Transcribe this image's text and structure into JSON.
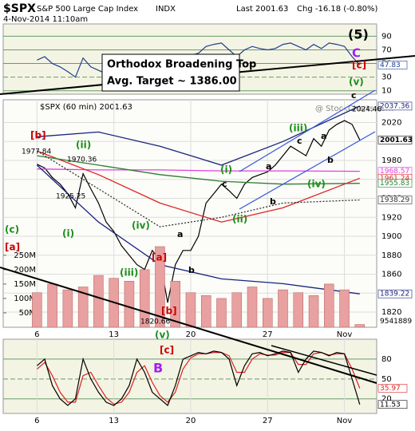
{
  "header": {
    "symbol": "$SPX",
    "name": "S&P 500 Large Cap Index",
    "exchange": "INDX",
    "timestamp": "4-Nov-2014 11:10am",
    "last": "Last 2001.63",
    "change": "Chg -16.18 (-0.80%)"
  },
  "watermark": "@ StockCharts.com",
  "note": {
    "line1": "Orthodox Broadening Top",
    "line2": "Avg. Target ~ 1386.00"
  },
  "annotations": [
    {
      "text": "(5)",
      "color": "#000000"
    },
    {
      "text": "C",
      "color": "#a020f0"
    },
    {
      "text": "[c]",
      "color": "#cc0000"
    },
    {
      "text": "(v)",
      "color": "#1a8f1a"
    },
    {
      "text": "c",
      "color": "#000000"
    },
    {
      "text": "2024.46",
      "color": "#000000"
    },
    {
      "text": "[b]",
      "color": "#cc0000"
    },
    {
      "text": "1977.84",
      "color": "#000000"
    },
    {
      "text": "(ii)",
      "color": "#1a8f1a"
    },
    {
      "text": "1970.36",
      "color": "#000000"
    },
    {
      "text": "1925.25",
      "color": "#000000"
    },
    {
      "text": "(i)",
      "color": "#1a8f1a"
    },
    {
      "text": "(c)",
      "color": "#1a8f1a"
    },
    {
      "text": "[a]",
      "color": "#cc0000"
    },
    {
      "text": "(iv)",
      "color": "#1a8f1a"
    },
    {
      "text": "(iii)",
      "color": "#1a8f1a"
    },
    {
      "text": "[a]",
      "color": "#cc0000"
    },
    {
      "text": "a",
      "color": "#000000"
    },
    {
      "text": "b",
      "color": "#000000"
    },
    {
      "text": "[b]",
      "color": "#cc0000"
    },
    {
      "text": "1820.66",
      "color": "#000000"
    },
    {
      "text": "(v)",
      "color": "#1a8f1a"
    },
    {
      "text": "[c]",
      "color": "#cc0000"
    },
    {
      "text": "B",
      "color": "#a020f0"
    },
    {
      "text": "(i)",
      "color": "#1a8f1a"
    },
    {
      "text": "c",
      "color": "#000000"
    },
    {
      "text": "(ii)",
      "color": "#1a8f1a"
    },
    {
      "text": "a",
      "color": "#000000"
    },
    {
      "text": "b",
      "color": "#000000"
    },
    {
      "text": "(iii)",
      "color": "#1a8f1a"
    },
    {
      "text": "c",
      "color": "#000000"
    },
    {
      "text": "a",
      "color": "#000000"
    },
    {
      "text": "b",
      "color": "#000000"
    },
    {
      "text": "(iv)",
      "color": "#1a8f1a"
    }
  ],
  "chart_data": [
    {
      "type": "line",
      "xlim": [
        -2.2,
        22.1
      ],
      "ylim": [
        5,
        108
      ],
      "yticks": [
        10,
        30,
        50,
        70,
        90
      ],
      "x": [
        0,
        0.5,
        1,
        1.5,
        2,
        2.5,
        3,
        3.5,
        4,
        4.5,
        5,
        5.5,
        6,
        6.5,
        7,
        7.5,
        8,
        8.5,
        9,
        9.5,
        10,
        10.5,
        11,
        11.5,
        12,
        12.5,
        13,
        13.5,
        14,
        14.5,
        15,
        15.5,
        16,
        16.5,
        17,
        17.5,
        18,
        18.5,
        19,
        19.5,
        20,
        20.5,
        21
      ],
      "series": [
        {
          "color": "#1f3f8f",
          "values": [
            55,
            60,
            50,
            45,
            38,
            30,
            58,
            45,
            40,
            35,
            32,
            30,
            28,
            35,
            40,
            55,
            45,
            25,
            50,
            60,
            62,
            65,
            75,
            78,
            80,
            70,
            60,
            70,
            75,
            72,
            70,
            72,
            78,
            80,
            75,
            70,
            78,
            72,
            80,
            78,
            75,
            60,
            47.83
          ]
        }
      ]
    },
    {
      "type": "line",
      "title": "$SPX (60 min) 2001.63",
      "xlim": [
        -2.2,
        22.1
      ],
      "ylim": [
        1804,
        2044
      ],
      "xticks": [
        {
          "value": 0,
          "label": "6"
        },
        {
          "value": 5,
          "label": "13"
        },
        {
          "value": 10,
          "label": "20"
        },
        {
          "value": 15,
          "label": "27"
        },
        {
          "value": 20,
          "label": "Nov"
        }
      ],
      "yticks": [
        1820,
        1840,
        1860,
        1880,
        1900,
        1920,
        1940,
        1960,
        1980,
        2000,
        2020
      ],
      "grid": true,
      "x": [
        0,
        0.5,
        1,
        1.5,
        2,
        2.5,
        3,
        3.5,
        4,
        4.5,
        5,
        5.5,
        6,
        6.5,
        7,
        7.5,
        8,
        8.5,
        9,
        9.5,
        10,
        10.5,
        11,
        11.5,
        12,
        12.5,
        13,
        13.5,
        14,
        14.5,
        15,
        15.5,
        16,
        16.5,
        17,
        17.5,
        18,
        18.5,
        19,
        19.5,
        20,
        20.5,
        21
      ],
      "series": [
        {
          "color": "#000000",
          "values": [
            1976,
            1972,
            1962,
            1955,
            1945,
            1930,
            1966,
            1950,
            1935,
            1915,
            1905,
            1890,
            1880,
            1870,
            1865,
            1885,
            1875,
            1830,
            1870,
            1885,
            1885,
            1900,
            1935,
            1945,
            1955,
            1948,
            1940,
            1955,
            1962,
            1965,
            1968,
            1975,
            1985,
            1995,
            1990,
            1985,
            2003,
            1995,
            2012,
            2018,
            2022,
            2018,
            2001.63
          ]
        },
        {
          "color": "#1a237e",
          "x": [
            0,
            4,
            8,
            12,
            16,
            21
          ],
          "values": [
            2005,
            2010,
            1995,
            1975,
            2000,
            2037.36
          ]
        },
        {
          "color": "#e040e0",
          "x": [
            0,
            4,
            8,
            12,
            16,
            21
          ],
          "values": [
            1971,
            1970,
            1970,
            1969,
            1969,
            1968.57
          ]
        },
        {
          "color": "#dd2222",
          "x": [
            0,
            4,
            8,
            12,
            16,
            21
          ],
          "values": [
            1990,
            1965,
            1935,
            1915,
            1930,
            1961.24
          ]
        },
        {
          "color": "#2e7d32",
          "x": [
            0,
            4,
            8,
            12,
            16,
            21
          ],
          "values": [
            1985,
            1975,
            1965,
            1958,
            1955,
            1955.83
          ]
        },
        {
          "color": "#333333",
          "x": [
            0,
            4,
            8,
            12,
            16,
            21
          ],
          "values": [
            1990,
            1950,
            1910,
            1920,
            1935,
            1938.29
          ]
        },
        {
          "color": "#1a237e",
          "x": [
            0,
            4,
            8,
            12,
            16,
            21
          ],
          "values": [
            1975,
            1915,
            1870,
            1855,
            1850,
            1839.22
          ]
        }
      ]
    },
    {
      "type": "bar",
      "xlim": [
        -2.2,
        22.1
      ],
      "ylim": [
        0,
        790
      ],
      "color": "#e8a0a0",
      "yticks": [
        {
          "value": 50,
          "label": "50M"
        },
        {
          "value": 100,
          "label": "100M"
        },
        {
          "value": 150,
          "label": "150M"
        },
        {
          "value": 200,
          "label": "200M"
        },
        {
          "value": 250,
          "label": "250M"
        }
      ],
      "x": [
        0,
        1,
        2,
        3,
        4,
        5,
        6,
        7,
        8,
        9,
        10,
        11,
        12,
        13,
        14,
        15,
        16,
        17,
        18,
        19,
        20,
        21
      ],
      "values": [
        120,
        150,
        130,
        140,
        180,
        170,
        160,
        200,
        280,
        160,
        120,
        110,
        100,
        120,
        140,
        100,
        130,
        120,
        110,
        150,
        130,
        9.541889
      ],
      "last_label": "9541889"
    },
    {
      "type": "line",
      "xlim": [
        -2.2,
        22.1
      ],
      "ylim": [
        -2,
        110
      ],
      "yticks": [
        20,
        50,
        80
      ],
      "xticks": [
        {
          "value": 0,
          "label": "6"
        },
        {
          "value": 5,
          "label": "13"
        },
        {
          "value": 10,
          "label": "20"
        },
        {
          "value": 15,
          "label": "27"
        },
        {
          "value": 20,
          "label": "Nov"
        }
      ],
      "x": [
        0,
        0.5,
        1,
        1.5,
        2,
        2.5,
        3,
        3.5,
        4,
        4.5,
        5,
        5.5,
        6,
        6.5,
        7,
        7.5,
        8,
        8.5,
        9,
        9.5,
        10,
        10.5,
        11,
        11.5,
        12,
        12.5,
        13,
        13.5,
        14,
        14.5,
        15,
        15.5,
        16,
        16.5,
        17,
        17.5,
        18,
        18.5,
        19,
        19.5,
        20,
        20.5,
        21
      ],
      "series": [
        {
          "color": "#dd2222",
          "values": [
            65,
            75,
            55,
            30,
            15,
            15,
            55,
            60,
            40,
            22,
            12,
            15,
            30,
            60,
            70,
            45,
            25,
            15,
            30,
            65,
            82,
            88,
            88,
            90,
            90,
            85,
            60,
            60,
            80,
            88,
            86,
            86,
            90,
            90,
            72,
            72,
            88,
            90,
            86,
            88,
            88,
            65,
            35.97
          ]
        },
        {
          "color": "#000000",
          "values": [
            70,
            80,
            40,
            20,
            10,
            20,
            80,
            50,
            30,
            15,
            10,
            20,
            40,
            80,
            60,
            30,
            20,
            10,
            40,
            80,
            85,
            90,
            88,
            92,
            90,
            80,
            40,
            70,
            88,
            90,
            85,
            88,
            92,
            90,
            60,
            80,
            92,
            90,
            85,
            90,
            88,
            50,
            11.53
          ]
        }
      ]
    }
  ]
}
